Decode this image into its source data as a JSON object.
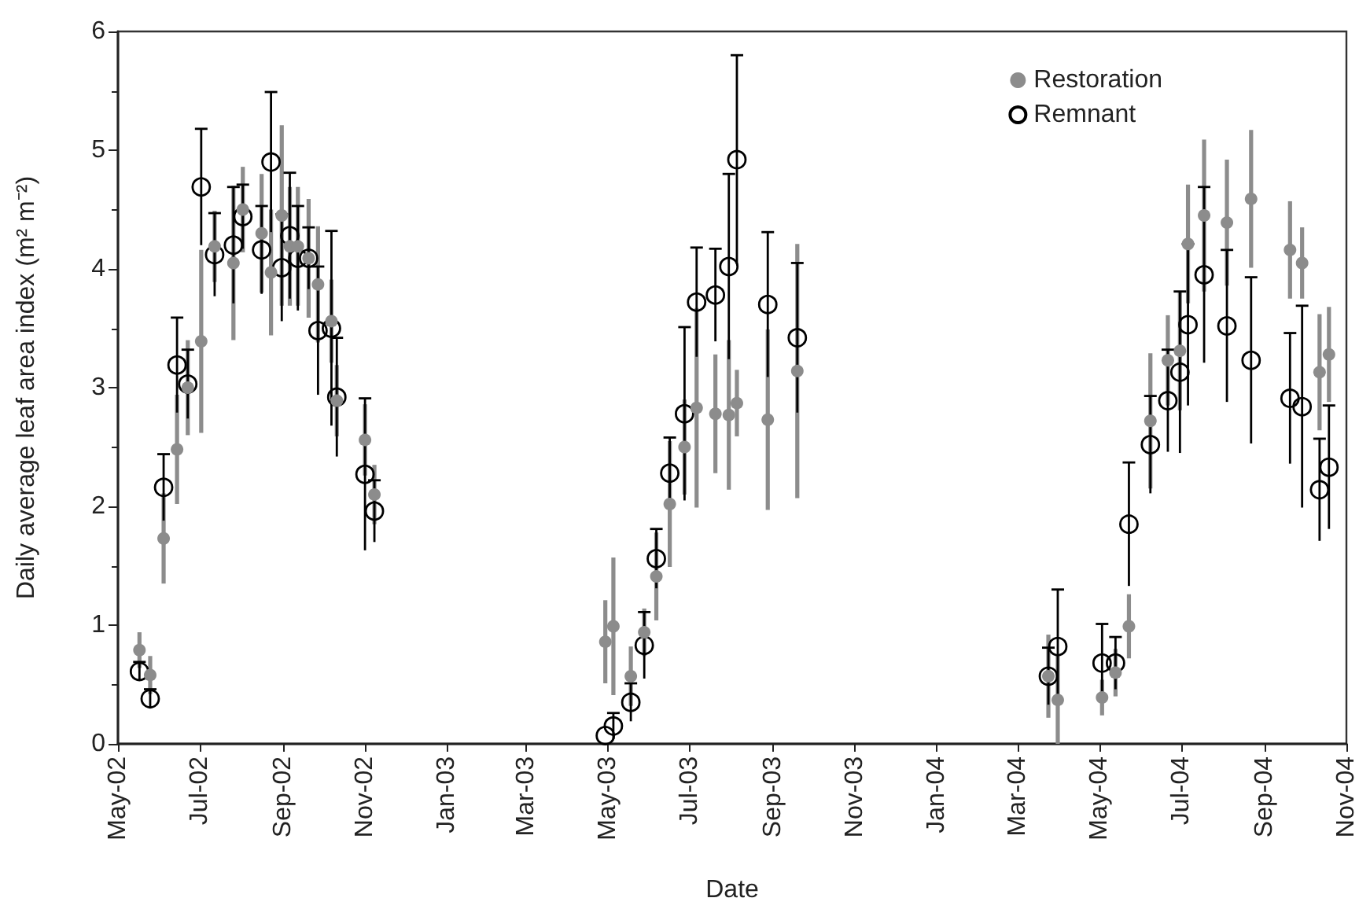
{
  "chart_data": {
    "type": "scatter",
    "xlabel": "Date",
    "ylabel": "Daily average leaf area index (m² m⁻²)",
    "x": [
      "2002-05-17",
      "2002-05-25",
      "2002-06-04",
      "2002-06-14",
      "2002-06-22",
      "2002-07-02",
      "2002-07-12",
      "2002-07-26",
      "2002-08-02",
      "2002-08-16",
      "2002-08-23",
      "2002-08-31",
      "2002-09-06",
      "2002-09-12",
      "2002-09-20",
      "2002-09-27",
      "2002-10-07",
      "2002-10-11",
      "2002-11-01",
      "2002-11-08",
      "2003-04-29",
      "2003-05-05",
      "2003-05-18",
      "2003-05-28",
      "2003-06-06",
      "2003-06-16",
      "2003-06-27",
      "2003-07-06",
      "2003-07-20",
      "2003-07-30",
      "2003-08-05",
      "2003-08-28",
      "2003-09-19",
      "2004-03-24",
      "2004-03-31",
      "2004-05-03",
      "2004-05-13",
      "2004-05-23",
      "2004-06-08",
      "2004-06-21",
      "2004-06-30",
      "2004-07-06",
      "2004-07-18",
      "2004-08-04",
      "2004-08-22",
      "2004-09-20",
      "2004-09-29",
      "2004-10-12",
      "2004-10-19"
    ],
    "series": [
      {
        "name": "Restoration",
        "color": "#8c8c8c",
        "values": [
          0.79,
          0.58,
          1.73,
          2.48,
          3.0,
          3.39,
          4.19,
          4.05,
          4.5,
          4.3,
          3.97,
          4.45,
          4.19,
          4.19,
          4.09,
          3.87,
          3.56,
          2.89,
          2.56,
          2.1,
          0.86,
          0.99,
          0.57,
          0.94,
          1.41,
          2.02,
          2.5,
          2.83,
          2.78,
          2.77,
          2.87,
          2.73,
          3.14,
          0.57,
          0.37,
          0.39,
          0.6,
          0.99,
          2.72,
          3.23,
          3.31,
          4.21,
          4.45,
          4.39,
          4.59,
          4.16,
          4.05,
          3.13,
          3.28
        ],
        "errors": [
          0.15,
          0.16,
          0.38,
          0.46,
          0.4,
          0.77,
          0.3,
          0.65,
          0.36,
          0.5,
          0.53,
          0.76,
          0.5,
          0.5,
          0.5,
          0.49,
          0.35,
          0.3,
          0.3,
          0.25,
          0.35,
          0.58,
          0.25,
          0.2,
          0.37,
          0.53,
          0.4,
          0.84,
          0.5,
          0.63,
          0.28,
          0.76,
          1.07,
          0.35,
          0.37,
          0.15,
          0.2,
          0.27,
          0.57,
          0.38,
          0.5,
          0.5,
          0.64,
          0.53,
          0.58,
          0.41,
          0.3,
          0.49,
          0.4
        ]
      },
      {
        "name": "Remnant",
        "color": "#000000",
        "values": [
          0.61,
          0.38,
          2.16,
          3.19,
          3.03,
          4.69,
          4.12,
          4.2,
          4.44,
          4.16,
          4.9,
          4.01,
          4.28,
          4.09,
          4.09,
          3.48,
          3.5,
          2.92,
          2.27,
          1.96,
          0.07,
          0.15,
          0.35,
          0.83,
          1.56,
          2.28,
          2.78,
          3.72,
          3.78,
          4.02,
          4.92,
          3.7,
          3.42,
          0.57,
          0.82,
          0.68,
          0.68,
          1.85,
          2.52,
          2.89,
          3.13,
          3.53,
          3.95,
          3.52,
          3.23,
          2.91,
          2.84,
          2.14,
          2.33
        ],
        "errors": [
          0.08,
          0.08,
          0.28,
          0.4,
          0.29,
          0.49,
          0.35,
          0.49,
          0.27,
          0.37,
          0.59,
          0.45,
          0.53,
          0.44,
          0.26,
          0.54,
          0.82,
          0.5,
          0.64,
          0.26,
          null,
          0.11,
          0.16,
          0.28,
          0.25,
          0.3,
          0.73,
          0.46,
          0.39,
          0.78,
          0.88,
          0.61,
          0.63,
          0.24,
          0.48,
          0.33,
          0.22,
          0.52,
          0.41,
          0.43,
          0.68,
          0.68,
          0.74,
          0.64,
          0.7,
          0.55,
          0.85,
          0.43,
          0.52
        ]
      }
    ],
    "xlim": [
      "2002-05-01",
      "2004-11-01"
    ],
    "xticks": [
      {
        "value": "2002-05-01",
        "label": "May-02"
      },
      {
        "value": "2002-07-01",
        "label": "Jul-02"
      },
      {
        "value": "2002-09-01",
        "label": "Sep-02"
      },
      {
        "value": "2002-11-01",
        "label": "Nov-02"
      },
      {
        "value": "2003-01-01",
        "label": "Jan-03"
      },
      {
        "value": "2003-03-01",
        "label": "Mar-03"
      },
      {
        "value": "2003-05-01",
        "label": "May-03"
      },
      {
        "value": "2003-07-01",
        "label": "Jul-03"
      },
      {
        "value": "2003-09-01",
        "label": "Sep-03"
      },
      {
        "value": "2003-11-01",
        "label": "Nov-03"
      },
      {
        "value": "2004-01-01",
        "label": "Jan-04"
      },
      {
        "value": "2004-03-01",
        "label": "Mar-04"
      },
      {
        "value": "2004-05-01",
        "label": "May-04"
      },
      {
        "value": "2004-07-01",
        "label": "Jul-04"
      },
      {
        "value": "2004-09-01",
        "label": "Sep-04"
      },
      {
        "value": "2004-11-01",
        "label": "Nov-04"
      }
    ],
    "ylim": [
      0,
      6
    ],
    "yticks": [
      0,
      1,
      2,
      3,
      4,
      5,
      6
    ],
    "grid": false,
    "legend": "top right",
    "marker": "circle"
  }
}
